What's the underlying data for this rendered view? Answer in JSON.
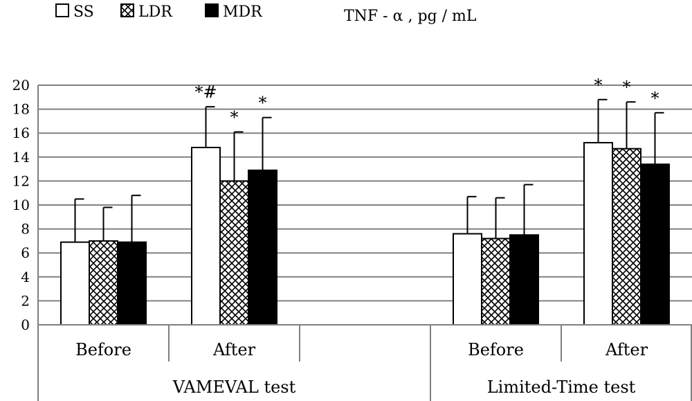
{
  "chart_data": {
    "type": "bar",
    "title": "TNF - α , pg / mL",
    "legend": [
      {
        "name": "SS",
        "fill": "#ffffff"
      },
      {
        "name": "LDR",
        "fill": "pattern"
      },
      {
        "name": "MDR",
        "fill": "#000000"
      }
    ],
    "legend_placement": "top-left",
    "ylim": [
      0,
      20
    ],
    "yticks": [
      "0",
      "2",
      "4",
      "6",
      "8",
      "10",
      "12",
      "14",
      "16",
      "18",
      "20"
    ],
    "grid": true,
    "groups": [
      {
        "label": "VAMEVAL test",
        "categories": [
          {
            "label": "Before",
            "values": [
              6.9,
              7.0,
              6.9
            ],
            "errors": [
              3.6,
              2.8,
              3.9
            ],
            "annotations": [
              "",
              "",
              ""
            ]
          },
          {
            "label": "After",
            "values": [
              14.8,
              12.0,
              12.9
            ],
            "errors": [
              3.4,
              4.1,
              4.4
            ],
            "annotations": [
              "*#",
              "*",
              "*"
            ]
          },
          {
            "label": "",
            "values": [],
            "errors": [],
            "annotations": []
          }
        ]
      },
      {
        "label": "Limited-Time test",
        "categories": [
          {
            "label": "Before",
            "values": [
              7.6,
              7.2,
              7.5
            ],
            "errors": [
              3.1,
              3.4,
              4.2
            ],
            "annotations": [
              "",
              "",
              ""
            ]
          },
          {
            "label": "After",
            "values": [
              15.2,
              14.7,
              13.4
            ],
            "errors": [
              3.6,
              3.9,
              4.3
            ],
            "annotations": [
              "*",
              "*",
              "*"
            ]
          }
        ]
      }
    ]
  }
}
